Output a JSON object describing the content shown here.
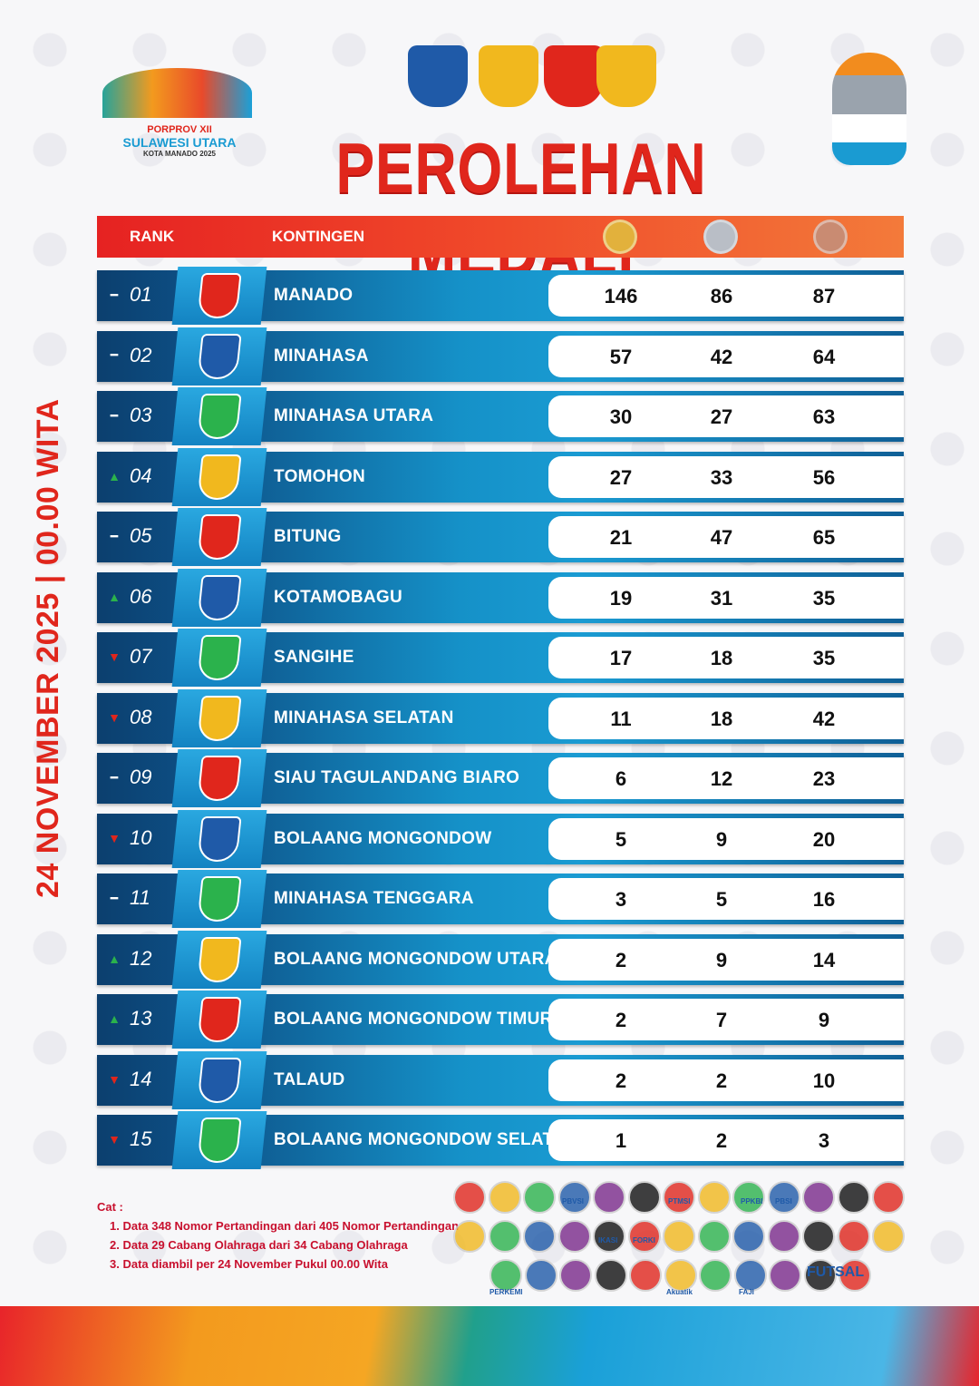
{
  "header": {
    "logo_line1": "PORPROV XII",
    "logo_line2": "SULAWESI UTARA",
    "logo_line3": "KOTA MANADO 2025",
    "title": "PEROLEHAN MEDALI",
    "date": "24 NOVEMBER 2025 | 00.00 WITA"
  },
  "table": {
    "col_rank": "RANK",
    "col_kontingen": "KONTINGEN",
    "medal_colors": {
      "gold": "#e2b13c",
      "silver": "#b9bec6",
      "bronze": "#c98b72"
    }
  },
  "colors": {
    "up": "#2bb24c",
    "down": "#e0261c",
    "same": "#ffffff"
  },
  "rows": [
    {
      "rank": "01",
      "trend": "same",
      "name": "MANADO",
      "gold": 146,
      "silver": 86,
      "bronze": 87
    },
    {
      "rank": "02",
      "trend": "same",
      "name": "MINAHASA",
      "gold": 57,
      "silver": 42,
      "bronze": 64
    },
    {
      "rank": "03",
      "trend": "same",
      "name": "MINAHASA UTARA",
      "gold": 30,
      "silver": 27,
      "bronze": 63
    },
    {
      "rank": "04",
      "trend": "up",
      "name": "TOMOHON",
      "gold": 27,
      "silver": 33,
      "bronze": 56
    },
    {
      "rank": "05",
      "trend": "same",
      "name": "BITUNG",
      "gold": 21,
      "silver": 47,
      "bronze": 65
    },
    {
      "rank": "06",
      "trend": "up",
      "name": "KOTAMOBAGU",
      "gold": 19,
      "silver": 31,
      "bronze": 35
    },
    {
      "rank": "07",
      "trend": "down",
      "name": "SANGIHE",
      "gold": 17,
      "silver": 18,
      "bronze": 35
    },
    {
      "rank": "08",
      "trend": "down",
      "name": "MINAHASA SELATAN",
      "gold": 11,
      "silver": 18,
      "bronze": 42
    },
    {
      "rank": "09",
      "trend": "same",
      "name": "SIAU TAGULANDANG BIARO",
      "gold": 6,
      "silver": 12,
      "bronze": 23
    },
    {
      "rank": "10",
      "trend": "down",
      "name": "BOLAANG MONGONDOW",
      "gold": 5,
      "silver": 9,
      "bronze": 20
    },
    {
      "rank": "11",
      "trend": "same",
      "name": "MINAHASA TENGGARA",
      "gold": 3,
      "silver": 5,
      "bronze": 16
    },
    {
      "rank": "12",
      "trend": "up",
      "name": "BOLAANG MONGONDOW UTARA",
      "gold": 2,
      "silver": 9,
      "bronze": 14
    },
    {
      "rank": "13",
      "trend": "up",
      "name": "BOLAANG MONGONDOW TIMUR",
      "gold": 2,
      "silver": 7,
      "bronze": 9
    },
    {
      "rank": "14",
      "trend": "down",
      "name": "TALAUD",
      "gold": 2,
      "silver": 2,
      "bronze": 10
    },
    {
      "rank": "15",
      "trend": "down",
      "name": "BOLAANG MONGONDOW SELATAN",
      "gold": 1,
      "silver": 2,
      "bronze": 3
    }
  ],
  "notes": {
    "label": "Cat :",
    "items": [
      "1. Data 348 Nomor Pertandingan dari 405 Nomor Pertandingan",
      "2. Data 29 Cabang Olahraga dari 34 Cabang Olahraga",
      "3. Data diambil per 24 November Pukul 00.00 Wita"
    ]
  },
  "sponsors": {
    "labels": [
      "PBVSI",
      "PTMSI",
      "PPKBI",
      "PBSI",
      "IKASI",
      "FORKI",
      "PERKEMI",
      "Akuatik",
      "FAJI",
      "FUTSAL"
    ]
  }
}
